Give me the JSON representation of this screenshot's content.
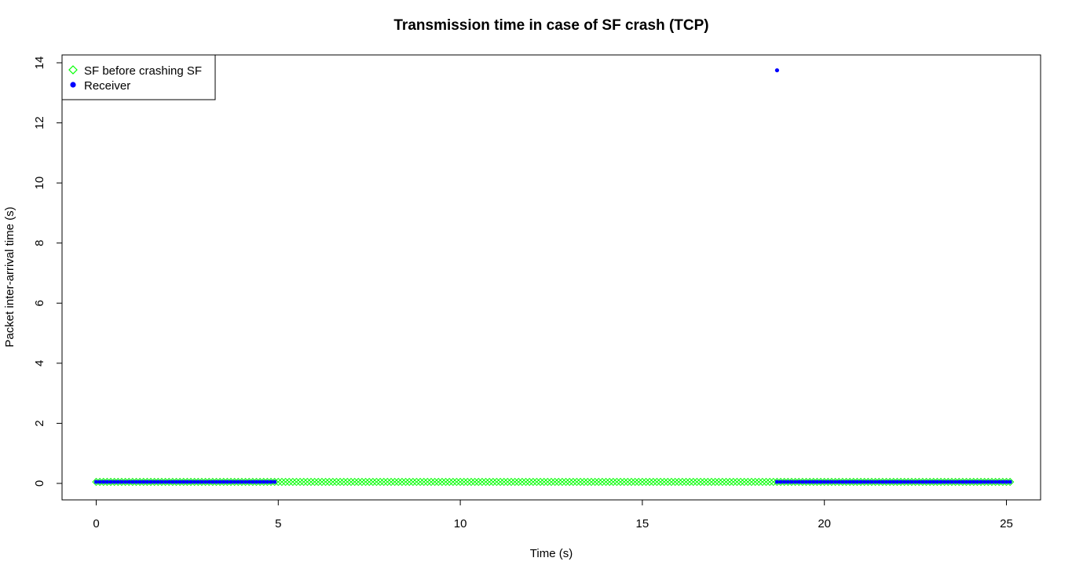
{
  "chart_data": {
    "type": "scatter",
    "title": "Transmission time in case of SF crash (TCP)",
    "xlabel": "Time (s)",
    "ylabel": "Packet inter-arrival time (s)",
    "xlim": [
      0,
      25
    ],
    "ylim": [
      0,
      14
    ],
    "x_ticks": [
      "0",
      "5",
      "10",
      "15",
      "20",
      "25"
    ],
    "y_ticks": [
      "0",
      "2",
      "4",
      "6",
      "8",
      "10",
      "12",
      "14"
    ],
    "grid": false,
    "legend_position": "top-left",
    "series": [
      {
        "name": "SF before crashing SF",
        "marker": "open-diamond",
        "color": "#00ff00",
        "segments": [
          {
            "x_start": 0.0,
            "x_end": 25.1,
            "step": 0.1,
            "y": 0.05
          }
        ]
      },
      {
        "name": "Receiver",
        "marker": "filled-circle",
        "color": "#0000ff",
        "segments": [
          {
            "x_start": 0.0,
            "x_end": 4.95,
            "step": 0.1,
            "y": 0.05
          },
          {
            "x_start": 18.7,
            "x_end": 25.1,
            "step": 0.1,
            "y": 0.05
          }
        ],
        "points": [
          {
            "x": 18.7,
            "y": 13.75
          }
        ]
      }
    ]
  }
}
